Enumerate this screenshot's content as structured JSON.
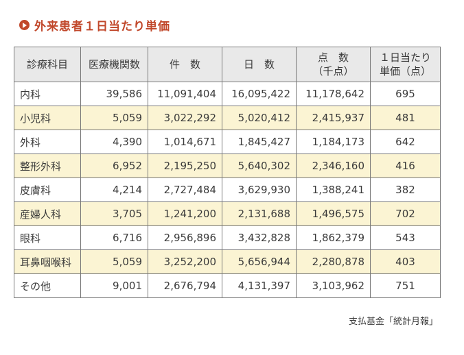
{
  "title": "外来患者１日当たり単価",
  "icon": "play-circle-icon",
  "colors": {
    "accent": "#c1482b",
    "header_bg": "#e9e9e9",
    "row_highlight": "#fbf4d3"
  },
  "table": {
    "headers": [
      {
        "line1": "診療科目",
        "line2": ""
      },
      {
        "line1": "医療機関数",
        "line2": ""
      },
      {
        "line1": "件　数",
        "line2": ""
      },
      {
        "line1": "日　数",
        "line2": ""
      },
      {
        "line1": "点　数",
        "line2": "（千点）"
      },
      {
        "line1": "１日当たり",
        "line2": "単価（点）"
      }
    ],
    "rows": [
      [
        "内科",
        "39,586",
        "11,091,404",
        "16,095,422",
        "11,178,642",
        "695"
      ],
      [
        "小児科",
        "5,059",
        "3,022,292",
        "5,020,412",
        "2,415,937",
        "481"
      ],
      [
        "外科",
        "4,390",
        "1,014,671",
        "1,845,427",
        "1,184,173",
        "642"
      ],
      [
        "整形外科",
        "6,952",
        "2,195,250",
        "5,640,302",
        "2,346,160",
        "416"
      ],
      [
        "皮膚科",
        "4,214",
        "2,727,484",
        "3,629,930",
        "1,388,241",
        "382"
      ],
      [
        "産婦人科",
        "3,705",
        "1,241,200",
        "2,131,688",
        "1,496,575",
        "702"
      ],
      [
        "眼科",
        "6,716",
        "2,956,896",
        "3,432,828",
        "1,862,379",
        "543"
      ],
      [
        "耳鼻咽喉科",
        "5,059",
        "3,252,200",
        "5,656,944",
        "2,280,878",
        "403"
      ],
      [
        "その他",
        "9,001",
        "2,676,794",
        "4,131,397",
        "3,103,962",
        "751"
      ]
    ]
  },
  "source": "支払基金「統計月報」"
}
